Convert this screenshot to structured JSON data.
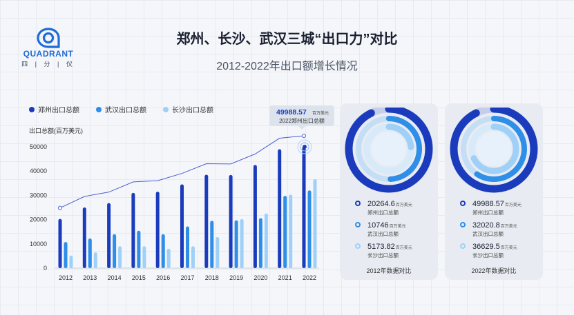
{
  "header": {
    "title": "郑州、长沙、武汉三城“出口力”对比",
    "subtitle": "2012-2022年出口额增长情况"
  },
  "logo": {
    "brand": "QUADRANT",
    "sub": "四 | 分 | 仪"
  },
  "legend": [
    {
      "label": "郑州出口总额",
      "color": "#1a3cbc"
    },
    {
      "label": "武汉出口总额",
      "color": "#2f8ee8"
    },
    {
      "label": "长沙出口总额",
      "color": "#9fd0f8"
    }
  ],
  "chart_data": {
    "type": "bar",
    "ylabel": "出口总额(百万美元)",
    "ylim": [
      0,
      50000
    ],
    "yticks": [
      "0",
      "10000",
      "20000",
      "30000",
      "40000",
      "50000"
    ],
    "categories": [
      "2012",
      "2013",
      "2014",
      "2015",
      "2016",
      "2017",
      "2018",
      "2019",
      "2020",
      "2021",
      "2022"
    ],
    "series": [
      {
        "name": "郑州出口总额",
        "color": "#1a3cbc",
        "values": [
          20265,
          25000,
          26800,
          31000,
          31500,
          34500,
          38500,
          38400,
          42500,
          49000,
          49989
        ]
      },
      {
        "name": "武汉出口总额",
        "color": "#2f8ee8",
        "values": [
          10746,
          12200,
          14000,
          15400,
          14000,
          17200,
          19500,
          19700,
          20600,
          29800,
          32021
        ]
      },
      {
        "name": "长沙出口总额",
        "color": "#9fd0f8",
        "values": [
          5174,
          6500,
          9000,
          9000,
          8000,
          9000,
          12800,
          20200,
          22500,
          30300,
          36630
        ]
      }
    ],
    "trend_line": {
      "color": "#4a5fd0"
    },
    "callout": {
      "value": "49988.57",
      "unit": "百万美元",
      "label": "2022郑州出口总额"
    }
  },
  "cards": [
    {
      "label": "2012年数据对比",
      "stats": [
        {
          "value": "20264.6",
          "unit": "百万美元",
          "name": "郑州出口总额",
          "color": "#1a3cbc"
        },
        {
          "value": "10746",
          "unit": "百万美元",
          "name": "武汉出口总额",
          "color": "#2f8ee8"
        },
        {
          "value": "5173.82",
          "unit": "百万美元",
          "name": "长沙出口总额",
          "color": "#9fd0f8"
        }
      ]
    },
    {
      "label": "2022年数据对比",
      "stats": [
        {
          "value": "49988.57",
          "unit": "百万美元",
          "name": "郑州出口总额",
          "color": "#1a3cbc"
        },
        {
          "value": "32020.8",
          "unit": "百万美元",
          "name": "武汉出口总额",
          "color": "#2f8ee8"
        },
        {
          "value": "36629.5",
          "unit": "百万美元",
          "name": "长沙出口总额",
          "color": "#9fd0f8"
        }
      ]
    }
  ]
}
